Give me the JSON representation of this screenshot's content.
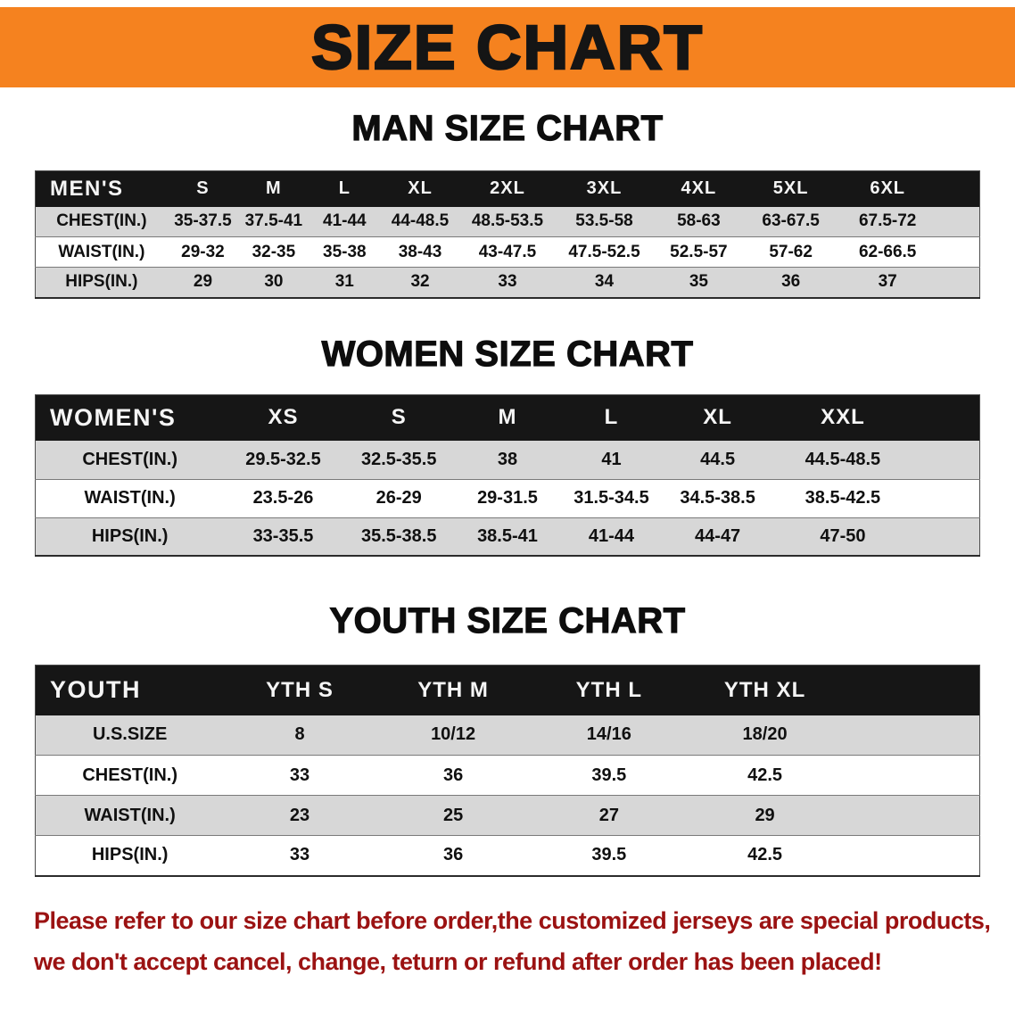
{
  "banner": {
    "title": "SIZE CHART"
  },
  "colors": {
    "banner_bg": "#F5821F",
    "table_header_bg": "#161616",
    "row_stripe": "#D7D7D7",
    "notice_text": "#9B1212"
  },
  "sections": {
    "men": {
      "heading": "MAN SIZE CHART",
      "table": {
        "columns": [
          "MEN'S",
          "S",
          "M",
          "L",
          "XL",
          "2XL",
          "3XL",
          "4XL",
          "5XL",
          "6XL"
        ],
        "rows": [
          [
            "CHEST(IN.)",
            "35-37.5",
            "37.5-41",
            "41-44",
            "44-48.5",
            "48.5-53.5",
            "53.5-58",
            "58-63",
            "63-67.5",
            "67.5-72"
          ],
          [
            "WAIST(IN.)",
            "29-32",
            "32-35",
            "35-38",
            "38-43",
            "43-47.5",
            "47.5-52.5",
            "52.5-57",
            "57-62",
            "62-66.5"
          ],
          [
            "HIPS(IN.)",
            "29",
            "30",
            "31",
            "32",
            "33",
            "34",
            "35",
            "36",
            "37"
          ]
        ]
      }
    },
    "women": {
      "heading": "WOMEN SIZE CHART",
      "table": {
        "columns": [
          "WOMEN'S",
          "XS",
          "S",
          "M",
          "L",
          "XL",
          "XXL"
        ],
        "rows": [
          [
            "CHEST(IN.)",
            "29.5-32.5",
            "32.5-35.5",
            "38",
            "41",
            "44.5",
            "44.5-48.5"
          ],
          [
            "WAIST(IN.)",
            "23.5-26",
            "26-29",
            "29-31.5",
            "31.5-34.5",
            "34.5-38.5",
            "38.5-42.5"
          ],
          [
            "HIPS(IN.)",
            "33-35.5",
            "35.5-38.5",
            "38.5-41",
            "41-44",
            "44-47",
            "47-50"
          ]
        ]
      }
    },
    "youth": {
      "heading": "YOUTH SIZE CHART",
      "table": {
        "columns": [
          "YOUTH",
          "YTH S",
          "YTH M",
          "YTH L",
          "YTH XL"
        ],
        "rows": [
          [
            "U.S.SIZE",
            "8",
            "10/12",
            "14/16",
            "18/20"
          ],
          [
            "CHEST(IN.)",
            "33",
            "36",
            "39.5",
            "42.5"
          ],
          [
            "WAIST(IN.)",
            "23",
            "25",
            "27",
            "29"
          ],
          [
            "HIPS(IN.)",
            "33",
            "36",
            "39.5",
            "42.5"
          ]
        ]
      }
    }
  },
  "footer": {
    "line1": "Please refer to our size chart before order,the customized jerseys are special products,",
    "line2": "we don't accept cancel, change, teturn or refund after order has been placed!"
  }
}
